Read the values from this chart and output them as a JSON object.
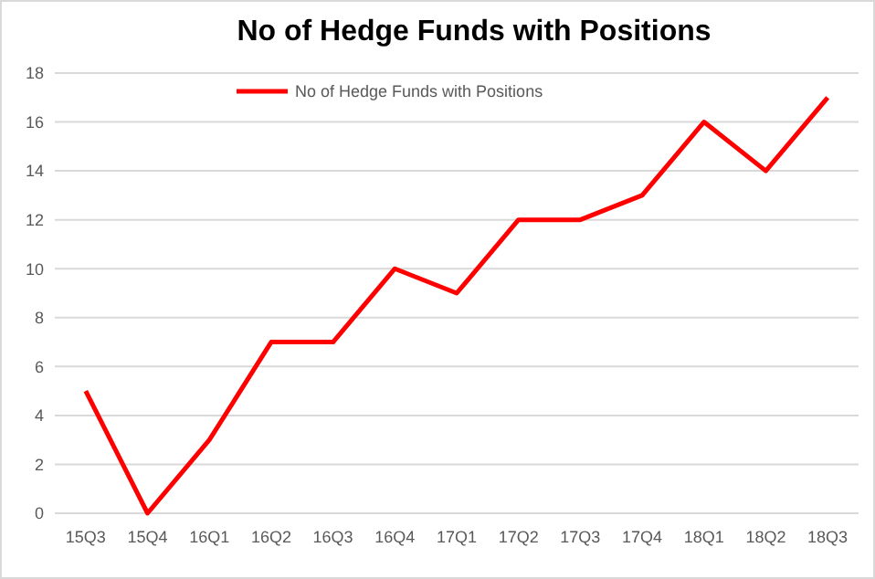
{
  "chart_data": {
    "type": "line",
    "title": "No of Hedge Funds with Positions",
    "categories": [
      "15Q3",
      "15Q4",
      "16Q1",
      "16Q2",
      "16Q3",
      "16Q4",
      "17Q1",
      "17Q2",
      "17Q3",
      "17Q4",
      "18Q1",
      "18Q2",
      "18Q3"
    ],
    "series": [
      {
        "name": "No of Hedge Funds with Positions",
        "color": "#ff0000",
        "values": [
          5,
          0,
          3,
          7,
          7,
          10,
          9,
          12,
          12,
          13,
          16,
          14,
          17
        ]
      }
    ],
    "ylim": [
      0,
      18
    ],
    "yticks": [
      0,
      2,
      4,
      6,
      8,
      10,
      12,
      14,
      16,
      18
    ],
    "grid": "y",
    "legend": "top",
    "marker": "none",
    "line_style": "solid"
  }
}
